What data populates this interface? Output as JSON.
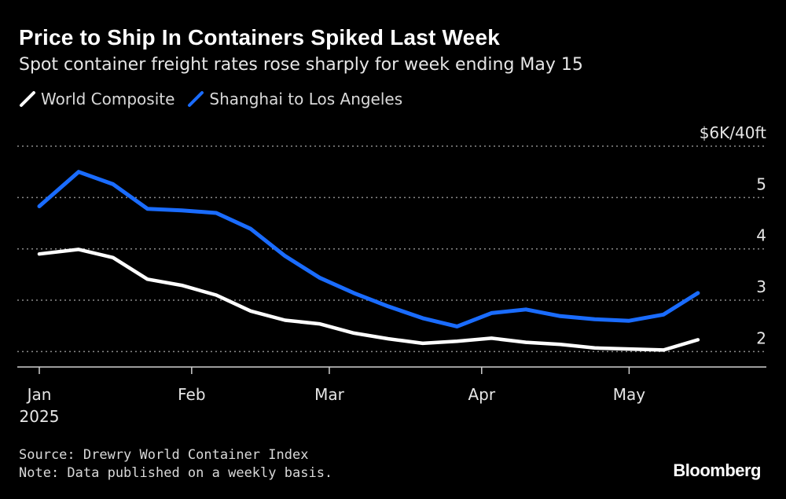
{
  "title": "Price to Ship In Containers Spiked Last Week",
  "subtitle": "Spot container freight rates rose sharply for week ending May 15",
  "footer": {
    "source": "Source: Drewry World Container Index",
    "note": "Note: Data published on a weekly basis."
  },
  "brand": "Bloomberg",
  "colors": {
    "background": "#000000",
    "world": "#ffffff",
    "shanghai": "#1a6cff",
    "grid": "#8a8a8a"
  },
  "chart_data": {
    "type": "line",
    "unit_label": "$6K/40ft",
    "ylim": [
      1.7,
      6.0
    ],
    "y_ticks": [
      {
        "value": 6,
        "label": "$6K/40ft"
      },
      {
        "value": 5,
        "label": "5"
      },
      {
        "value": 4,
        "label": "4"
      },
      {
        "value": 3,
        "label": "3"
      },
      {
        "value": 2,
        "label": "2"
      }
    ],
    "x_ticks": [
      {
        "date": "2025-01-01",
        "label": "Jan",
        "sublabel": "2025"
      },
      {
        "date": "2025-02-01",
        "label": "Feb"
      },
      {
        "date": "2025-03-01",
        "label": "Mar"
      },
      {
        "date": "2025-04-01",
        "label": "Apr"
      },
      {
        "date": "2025-05-01",
        "label": "May"
      }
    ],
    "x_range": [
      "2025-01-01",
      "2025-05-31"
    ],
    "grid": true,
    "legend": "top-left",
    "series": [
      {
        "name": "World Composite",
        "color": "#ffffff",
        "points": [
          [
            "2025-01-01",
            3.9
          ],
          [
            "2025-01-09",
            3.99
          ],
          [
            "2025-01-16",
            3.83
          ],
          [
            "2025-01-23",
            3.41
          ],
          [
            "2025-01-30",
            3.29
          ],
          [
            "2025-02-06",
            3.1
          ],
          [
            "2025-02-13",
            2.79
          ],
          [
            "2025-02-20",
            2.61
          ],
          [
            "2025-02-27",
            2.54
          ],
          [
            "2025-03-06",
            2.36
          ],
          [
            "2025-03-13",
            2.25
          ],
          [
            "2025-03-20",
            2.16
          ],
          [
            "2025-03-27",
            2.2
          ],
          [
            "2025-04-03",
            2.26
          ],
          [
            "2025-04-10",
            2.18
          ],
          [
            "2025-04-17",
            2.14
          ],
          [
            "2025-04-24",
            2.07
          ],
          [
            "2025-05-01",
            2.05
          ],
          [
            "2025-05-08",
            2.03
          ],
          [
            "2025-05-15",
            2.23
          ]
        ]
      },
      {
        "name": "Shanghai to Los Angeles",
        "color": "#1a6cff",
        "points": [
          [
            "2025-01-01",
            4.83
          ],
          [
            "2025-01-09",
            5.5
          ],
          [
            "2025-01-16",
            5.26
          ],
          [
            "2025-01-23",
            4.78
          ],
          [
            "2025-01-30",
            4.75
          ],
          [
            "2025-02-06",
            4.7
          ],
          [
            "2025-02-13",
            4.39
          ],
          [
            "2025-02-20",
            3.86
          ],
          [
            "2025-02-27",
            3.44
          ],
          [
            "2025-03-06",
            3.14
          ],
          [
            "2025-03-13",
            2.88
          ],
          [
            "2025-03-20",
            2.65
          ],
          [
            "2025-03-27",
            2.49
          ],
          [
            "2025-04-03",
            2.75
          ],
          [
            "2025-04-10",
            2.82
          ],
          [
            "2025-04-17",
            2.69
          ],
          [
            "2025-04-24",
            2.63
          ],
          [
            "2025-05-01",
            2.6
          ],
          [
            "2025-05-08",
            2.72
          ],
          [
            "2025-05-15",
            3.14
          ]
        ]
      }
    ]
  }
}
